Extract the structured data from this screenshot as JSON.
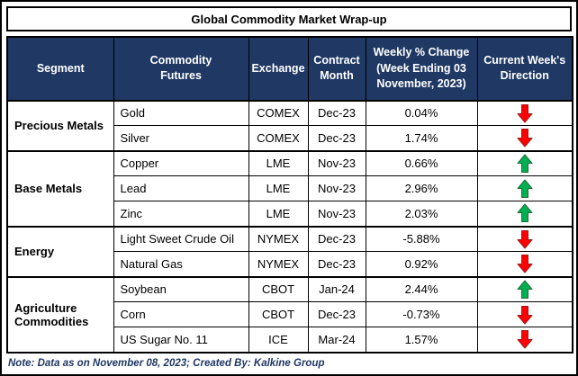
{
  "title": "Global Commodity Market Wrap-up",
  "header": {
    "segment": "Segment",
    "commodity_futures": "Commodity\nFutures",
    "exchange": "Exchange",
    "contract_month": "Contract\nMonth",
    "weekly_change": "Weekly % Change\n(Week Ending 03\nNovember, 2023)",
    "direction": "Current Week's\nDirection"
  },
  "groups": [
    {
      "segment": "Precious Metals",
      "rows": [
        {
          "commodity": "Gold",
          "exchange": "COMEX",
          "month": "Dec-23",
          "change": "0.04%",
          "direction": "down"
        },
        {
          "commodity": "Silver",
          "exchange": "COMEX",
          "month": "Dec-23",
          "change": "1.74%",
          "direction": "down"
        }
      ]
    },
    {
      "segment": "Base Metals",
      "rows": [
        {
          "commodity": "Copper",
          "exchange": "LME",
          "month": "Nov-23",
          "change": "0.66%",
          "direction": "up"
        },
        {
          "commodity": "Lead",
          "exchange": "LME",
          "month": "Nov-23",
          "change": "2.96%",
          "direction": "up"
        },
        {
          "commodity": "Zinc",
          "exchange": "LME",
          "month": "Nov-23",
          "change": "2.03%",
          "direction": "up"
        }
      ]
    },
    {
      "segment": "Energy",
      "rows": [
        {
          "commodity": "Light Sweet Crude Oil",
          "exchange": "NYMEX",
          "month": "Dec-23",
          "change": "-5.88%",
          "direction": "down"
        },
        {
          "commodity": "Natural Gas",
          "exchange": "NYMEX",
          "month": "Dec-23",
          "change": "0.92%",
          "direction": "down"
        }
      ]
    },
    {
      "segment": "Agriculture Commodities",
      "rows": [
        {
          "commodity": "Soybean",
          "exchange": "CBOT",
          "month": "Jan-24",
          "change": "2.44%",
          "direction": "up"
        },
        {
          "commodity": "Corn",
          "exchange": "CBOT",
          "month": "Dec-23",
          "change": "-0.73%",
          "direction": "down"
        },
        {
          "commodity": "US Sugar No. 11",
          "exchange": "ICE",
          "month": "Mar-24",
          "change": "1.57%",
          "direction": "down"
        }
      ]
    }
  ],
  "note": "Note: Data as on November 08, 2023; Created By: Kalkine Group",
  "colors": {
    "header_bg": "#1F3864",
    "up_arrow": "#00B050",
    "up_arrow_edge": "#1F6B3A",
    "down_arrow": "#FF0000",
    "down_arrow_edge": "#9C1B1B",
    "note_text": "#1F3864"
  },
  "chart_data": {
    "type": "table",
    "title": "Global Commodity Market Wrap-up",
    "columns": [
      "Segment",
      "Commodity Futures",
      "Exchange",
      "Contract Month",
      "Weekly % Change (Week Ending 03 November, 2023)",
      "Current Week's Direction"
    ],
    "rows": [
      [
        "Precious Metals",
        "Gold",
        "COMEX",
        "Dec-23",
        "0.04%",
        "down"
      ],
      [
        "Precious Metals",
        "Silver",
        "COMEX",
        "Dec-23",
        "1.74%",
        "down"
      ],
      [
        "Base Metals",
        "Copper",
        "LME",
        "Nov-23",
        "0.66%",
        "up"
      ],
      [
        "Base Metals",
        "Lead",
        "LME",
        "Nov-23",
        "2.96%",
        "up"
      ],
      [
        "Base Metals",
        "Zinc",
        "LME",
        "Nov-23",
        "2.03%",
        "up"
      ],
      [
        "Energy",
        "Light Sweet Crude Oil",
        "NYMEX",
        "Dec-23",
        "-5.88%",
        "down"
      ],
      [
        "Energy",
        "Natural Gas",
        "NYMEX",
        "Dec-23",
        "0.92%",
        "down"
      ],
      [
        "Agriculture Commodities",
        "Soybean",
        "CBOT",
        "Jan-24",
        "2.44%",
        "up"
      ],
      [
        "Agriculture Commodities",
        "Corn",
        "CBOT",
        "Dec-23",
        "-0.73%",
        "down"
      ],
      [
        "Agriculture Commodities",
        "US Sugar No. 11",
        "ICE",
        "Mar-24",
        "1.57%",
        "down"
      ]
    ],
    "weekly_change_pct": [
      0.04,
      1.74,
      0.66,
      2.96,
      2.03,
      -5.88,
      0.92,
      2.44,
      -0.73,
      1.57
    ],
    "note": "Note: Data as on November 08, 2023; Created By: Kalkine Group"
  }
}
